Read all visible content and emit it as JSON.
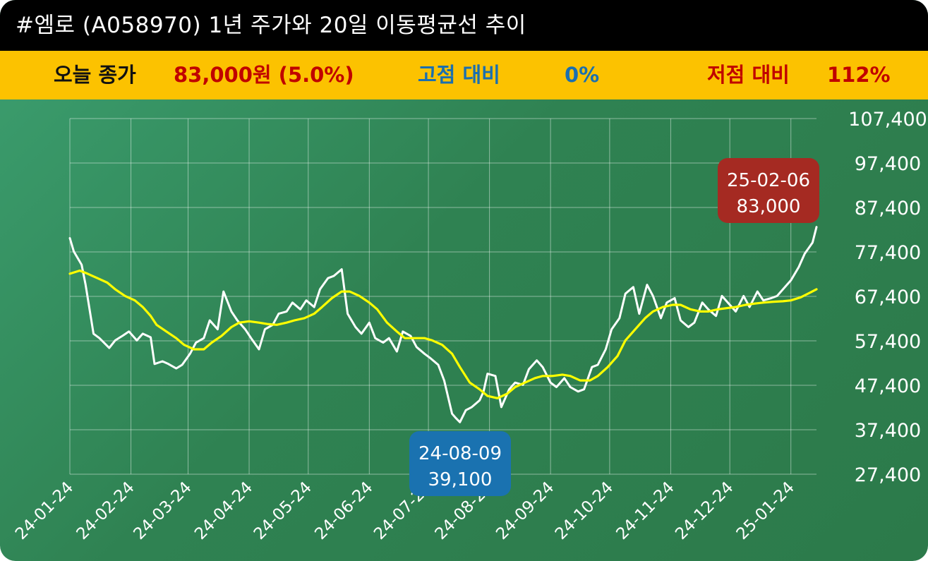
{
  "title": "#엠로 (A058970) 1년 주가와 20일 이동평균선 추이",
  "stats": {
    "close_label": "오늘 종가",
    "close_value": "83,000원 (5.0%)",
    "high_label": "고점 대비",
    "high_value": "0%",
    "low_label": "저점 대비",
    "low_value": "112%"
  },
  "colors": {
    "title_bg": "#000000",
    "stat_bg": "#fcc200",
    "price_line": "#ffffff",
    "ma_line": "#ffff00",
    "high_badge": "#a52a22",
    "low_badge": "#1a72b0"
  },
  "chart_data": {
    "type": "line",
    "x_ticks": [
      "24-01-24",
      "24-02-24",
      "24-03-24",
      "24-04-24",
      "24-05-24",
      "24-06-24",
      "24-07-24",
      "24-08-24",
      "24-09-24",
      "24-10-24",
      "24-11-24",
      "24-12-24",
      "25-01-24"
    ],
    "y_ticks": [
      "107,400",
      "97,400",
      "87,400",
      "77,400",
      "67,400",
      "57,400",
      "47,400",
      "37,400",
      "27,400"
    ],
    "ylim": [
      27400,
      107400
    ],
    "xlim": [
      "2024-01-24",
      "2025-02-06"
    ],
    "grid": true,
    "series": [
      {
        "name": "",
        "color": "#ffffff",
        "points": [
          [
            "2024-01-24",
            80500
          ],
          [
            "2024-01-26",
            77500
          ],
          [
            "2024-01-30",
            74500
          ],
          [
            "2024-02-01",
            70000
          ],
          [
            "2024-02-05",
            59000
          ],
          [
            "2024-02-08",
            58000
          ],
          [
            "2024-02-13",
            55800
          ],
          [
            "2024-02-16",
            57500
          ],
          [
            "2024-02-20",
            58600
          ],
          [
            "2024-02-23",
            59500
          ],
          [
            "2024-02-27",
            57500
          ],
          [
            "2024-03-01",
            59000
          ],
          [
            "2024-03-05",
            58200
          ],
          [
            "2024-03-07",
            52200
          ],
          [
            "2024-03-11",
            52800
          ],
          [
            "2024-03-14",
            52200
          ],
          [
            "2024-03-18",
            51200
          ],
          [
            "2024-03-21",
            52000
          ],
          [
            "2024-03-25",
            54500
          ],
          [
            "2024-03-28",
            57000
          ],
          [
            "2024-04-01",
            58000
          ],
          [
            "2024-04-04",
            62000
          ],
          [
            "2024-04-08",
            60000
          ],
          [
            "2024-04-11",
            68500
          ],
          [
            "2024-04-15",
            64000
          ],
          [
            "2024-04-18",
            62000
          ],
          [
            "2024-04-22",
            60000
          ],
          [
            "2024-04-25",
            58000
          ],
          [
            "2024-04-29",
            55500
          ],
          [
            "2024-05-02",
            60000
          ],
          [
            "2024-05-06",
            61000
          ],
          [
            "2024-05-09",
            63500
          ],
          [
            "2024-05-13",
            64000
          ],
          [
            "2024-05-16",
            66000
          ],
          [
            "2024-05-20",
            64500
          ],
          [
            "2024-05-23",
            66500
          ],
          [
            "2024-05-27",
            65000
          ],
          [
            "2024-05-30",
            69000
          ],
          [
            "2024-06-03",
            71500
          ],
          [
            "2024-06-06",
            72000
          ],
          [
            "2024-06-10",
            73500
          ],
          [
            "2024-06-13",
            63500
          ],
          [
            "2024-06-17",
            60500
          ],
          [
            "2024-06-20",
            59000
          ],
          [
            "2024-06-24",
            61500
          ],
          [
            "2024-06-27",
            58000
          ],
          [
            "2024-07-01",
            57000
          ],
          [
            "2024-07-04",
            58000
          ],
          [
            "2024-07-08",
            55000
          ],
          [
            "2024-07-11",
            59500
          ],
          [
            "2024-07-15",
            58500
          ],
          [
            "2024-07-18",
            56000
          ],
          [
            "2024-07-22",
            54500
          ],
          [
            "2024-07-25",
            53500
          ],
          [
            "2024-07-29",
            52000
          ],
          [
            "2024-08-01",
            48500
          ],
          [
            "2024-08-05",
            41000
          ],
          [
            "2024-08-07",
            40000
          ],
          [
            "2024-08-09",
            39100
          ],
          [
            "2024-08-12",
            41800
          ],
          [
            "2024-08-15",
            42500
          ],
          [
            "2024-08-19",
            44000
          ],
          [
            "2024-08-21",
            46000
          ],
          [
            "2024-08-23",
            50000
          ],
          [
            "2024-08-27",
            49500
          ],
          [
            "2024-08-30",
            42500
          ],
          [
            "2024-09-03",
            46500
          ],
          [
            "2024-09-06",
            48000
          ],
          [
            "2024-09-10",
            47500
          ],
          [
            "2024-09-13",
            51000
          ],
          [
            "2024-09-17",
            53000
          ],
          [
            "2024-09-20",
            51500
          ],
          [
            "2024-09-24",
            48000
          ],
          [
            "2024-09-27",
            47000
          ],
          [
            "2024-10-01",
            49000
          ],
          [
            "2024-10-04",
            47000
          ],
          [
            "2024-10-08",
            46000
          ],
          [
            "2024-10-11",
            46500
          ],
          [
            "2024-10-15",
            51500
          ],
          [
            "2024-10-18",
            52000
          ],
          [
            "2024-10-22",
            55500
          ],
          [
            "2024-10-25",
            60000
          ],
          [
            "2024-10-29",
            62500
          ],
          [
            "2024-11-01",
            68000
          ],
          [
            "2024-11-05",
            69500
          ],
          [
            "2024-11-08",
            63500
          ],
          [
            "2024-11-12",
            70000
          ],
          [
            "2024-11-15",
            67500
          ],
          [
            "2024-11-19",
            62500
          ],
          [
            "2024-11-22",
            66000
          ],
          [
            "2024-11-26",
            67000
          ],
          [
            "2024-11-29",
            62000
          ],
          [
            "2024-12-03",
            60500
          ],
          [
            "2024-12-06",
            61500
          ],
          [
            "2024-12-10",
            66000
          ],
          [
            "2024-12-13",
            64500
          ],
          [
            "2024-12-17",
            63000
          ],
          [
            "2024-12-20",
            67500
          ],
          [
            "2024-12-24",
            65500
          ],
          [
            "2024-12-27",
            64000
          ],
          [
            "2024-12-31",
            67500
          ],
          [
            "2025-01-03",
            65000
          ],
          [
            "2025-01-07",
            68500
          ],
          [
            "2025-01-10",
            66500
          ],
          [
            "2025-01-14",
            67000
          ],
          [
            "2025-01-17",
            67500
          ],
          [
            "2025-01-21",
            69500
          ],
          [
            "2025-01-24",
            71000
          ],
          [
            "2025-01-28",
            74000
          ],
          [
            "2025-01-31",
            77000
          ],
          [
            "2025-02-04",
            79500
          ],
          [
            "2025-02-06",
            83000
          ]
        ]
      },
      {
        "name": "",
        "color": "#ffff00",
        "points": [
          [
            "2024-01-24",
            72500
          ],
          [
            "2024-01-29",
            73200
          ],
          [
            "2024-02-02",
            72500
          ],
          [
            "2024-02-07",
            71500
          ],
          [
            "2024-02-12",
            70500
          ],
          [
            "2024-02-16",
            69000
          ],
          [
            "2024-02-21",
            67500
          ],
          [
            "2024-02-26",
            66500
          ],
          [
            "2024-03-01",
            65000
          ],
          [
            "2024-03-05",
            63000
          ],
          [
            "2024-03-08",
            61000
          ],
          [
            "2024-03-13",
            59500
          ],
          [
            "2024-03-18",
            58000
          ],
          [
            "2024-03-22",
            56500
          ],
          [
            "2024-03-27",
            55500
          ],
          [
            "2024-04-01",
            55500
          ],
          [
            "2024-04-05",
            57000
          ],
          [
            "2024-04-10",
            58500
          ],
          [
            "2024-04-15",
            60500
          ],
          [
            "2024-04-19",
            61500
          ],
          [
            "2024-04-24",
            61800
          ],
          [
            "2024-04-29",
            61500
          ],
          [
            "2024-05-03",
            61200
          ],
          [
            "2024-05-08",
            61000
          ],
          [
            "2024-05-13",
            61500
          ],
          [
            "2024-05-17",
            62000
          ],
          [
            "2024-05-22",
            62500
          ],
          [
            "2024-05-27",
            63500
          ],
          [
            "2024-05-31",
            65000
          ],
          [
            "2024-06-05",
            67000
          ],
          [
            "2024-06-10",
            68500
          ],
          [
            "2024-06-14",
            68500
          ],
          [
            "2024-06-19",
            67500
          ],
          [
            "2024-06-24",
            66000
          ],
          [
            "2024-06-28",
            64500
          ],
          [
            "2024-07-03",
            61500
          ],
          [
            "2024-07-08",
            59500
          ],
          [
            "2024-07-12",
            58000
          ],
          [
            "2024-07-17",
            58000
          ],
          [
            "2024-07-22",
            58000
          ],
          [
            "2024-07-26",
            57500
          ],
          [
            "2024-07-31",
            56500
          ],
          [
            "2024-08-05",
            54500
          ],
          [
            "2024-08-09",
            51500
          ],
          [
            "2024-08-14",
            48000
          ],
          [
            "2024-08-19",
            46500
          ],
          [
            "2024-08-23",
            45000
          ],
          [
            "2024-08-28",
            44500
          ],
          [
            "2024-09-02",
            45500
          ],
          [
            "2024-09-06",
            47000
          ],
          [
            "2024-09-11",
            48000
          ],
          [
            "2024-09-16",
            49000
          ],
          [
            "2024-09-20",
            49500
          ],
          [
            "2024-09-25",
            49500
          ],
          [
            "2024-09-30",
            49800
          ],
          [
            "2024-10-04",
            49500
          ],
          [
            "2024-10-09",
            48500
          ],
          [
            "2024-10-14",
            48500
          ],
          [
            "2024-10-18",
            49500
          ],
          [
            "2024-10-23",
            51500
          ],
          [
            "2024-10-28",
            54000
          ],
          [
            "2024-11-01",
            57500
          ],
          [
            "2024-11-06",
            60000
          ],
          [
            "2024-11-11",
            62500
          ],
          [
            "2024-11-15",
            64000
          ],
          [
            "2024-11-20",
            65000
          ],
          [
            "2024-11-25",
            65500
          ],
          [
            "2024-11-29",
            65500
          ],
          [
            "2024-12-04",
            64500
          ],
          [
            "2024-12-09",
            64000
          ],
          [
            "2024-12-13",
            64000
          ],
          [
            "2024-12-18",
            64500
          ],
          [
            "2024-12-23",
            64800
          ],
          [
            "2024-12-27",
            65000
          ],
          [
            "2025-01-01",
            65500
          ],
          [
            "2025-01-06",
            65800
          ],
          [
            "2025-01-10",
            66000
          ],
          [
            "2025-01-15",
            66200
          ],
          [
            "2025-01-20",
            66300
          ],
          [
            "2025-01-24",
            66500
          ],
          [
            "2025-01-29",
            67200
          ],
          [
            "2025-02-03",
            68300
          ],
          [
            "2025-02-06",
            69000
          ]
        ]
      }
    ],
    "annotations": [
      {
        "kind": "high",
        "date_label": "25-02-06",
        "value_label": "83,000"
      },
      {
        "kind": "low",
        "date_label": "24-08-09",
        "value_label": "39,100"
      }
    ]
  }
}
